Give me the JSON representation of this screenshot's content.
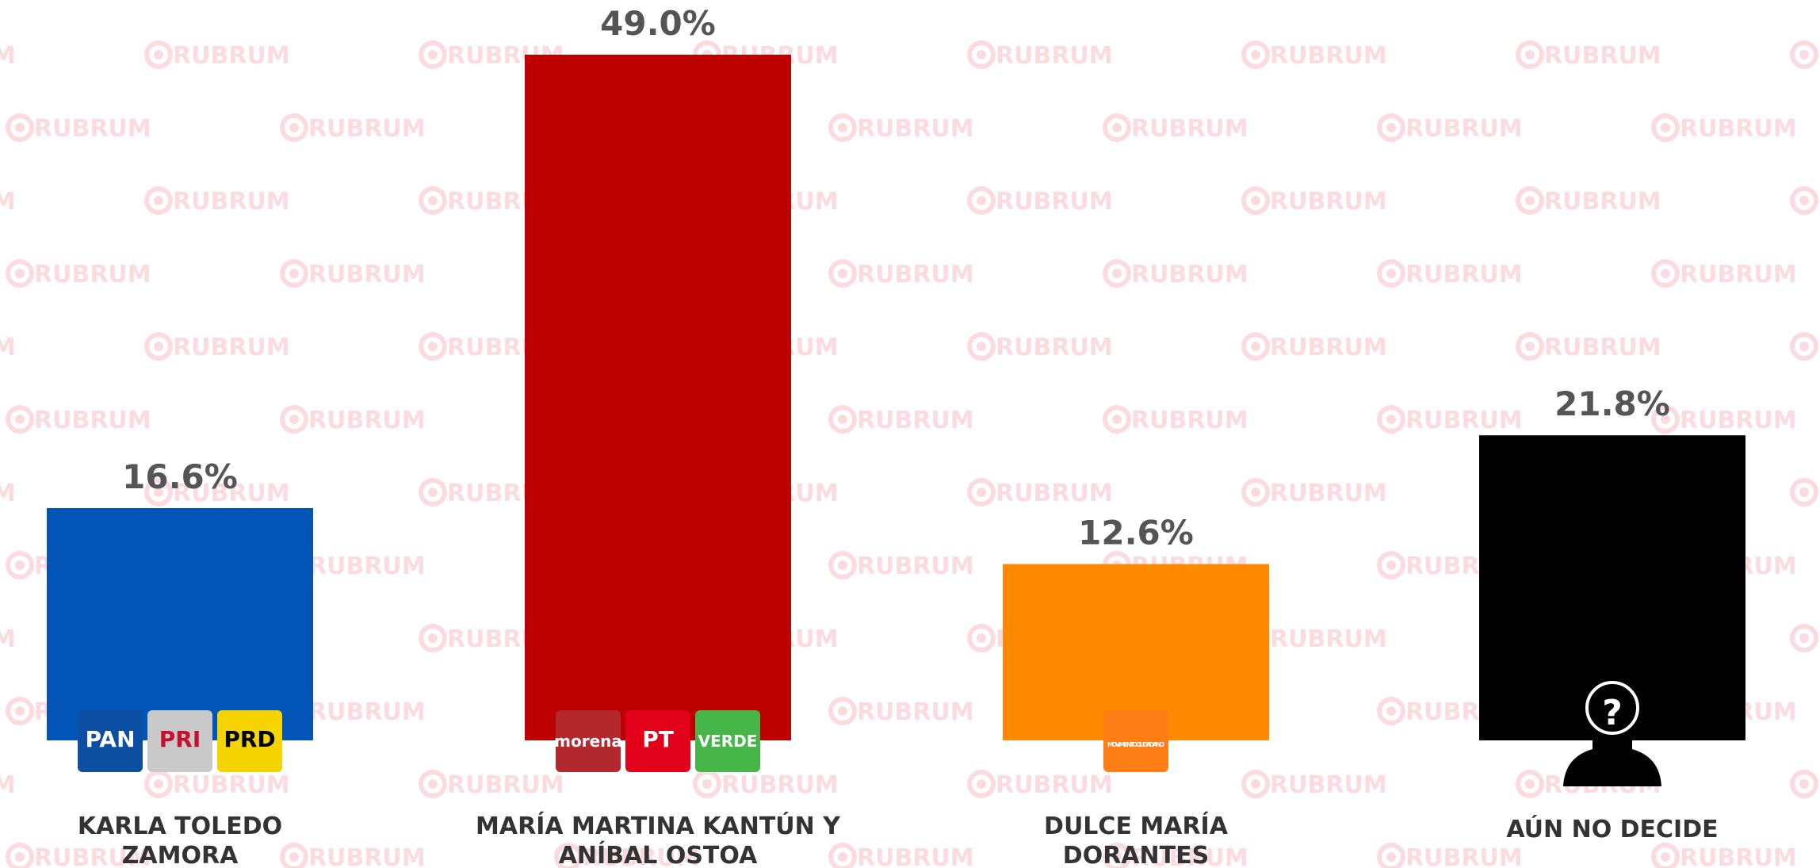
{
  "chart_data": {
    "type": "bar",
    "watermark": "RUBRUM",
    "categories": [
      "KARLA TOLEDO ZAMORA",
      "MARÍA MARTINA KANTÚN Y ANÍBAL OSTOA",
      "DULCE MARÍA DORANTES",
      "AÚN NO DECIDE"
    ],
    "values": [
      16.6,
      49.0,
      12.6,
      21.8
    ],
    "value_labels": [
      "16.6%",
      "49.0%",
      "12.6%",
      "21.8%"
    ],
    "colors": [
      "#0255b6",
      "#bd0000",
      "#ff8a00",
      "#000000"
    ],
    "logos": [
      [
        {
          "label": "PAN",
          "color": "#0b4ea2"
        },
        {
          "label": "PRI",
          "color": "#c9c9c9"
        },
        {
          "label": "PRD",
          "color": "#f5d400"
        }
      ],
      [
        {
          "label": "morena",
          "color": "#b3282d"
        },
        {
          "label": "PT",
          "color": "#e2001a"
        },
        {
          "label": "VERDE",
          "color": "#46b649"
        }
      ],
      [
        {
          "label": "MOVIMIENTO CIUDADANO",
          "color": "#ff7e16"
        }
      ],
      [
        {
          "label": "?",
          "color": "#000000"
        }
      ]
    ]
  }
}
